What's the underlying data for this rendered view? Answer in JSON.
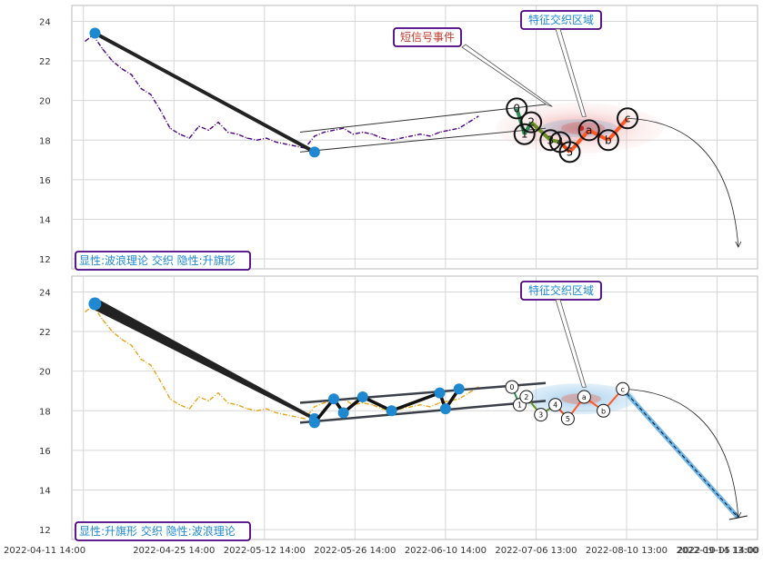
{
  "chart_data": [
    {
      "type": "line",
      "panel": "top",
      "yticks": [
        12,
        14,
        16,
        18,
        20,
        22,
        24
      ],
      "ylim": [
        11.5,
        24.8
      ],
      "grid": true,
      "annotations": {
        "callout_signal": "短信号事件",
        "callout_region": "特征交织区域",
        "legend_note": "显性:波浪理论 交织 隐性:升旗形"
      },
      "wave_labels": [
        "0",
        "1",
        "2",
        "3",
        "4",
        "5",
        "a",
        "b",
        "c"
      ],
      "price_series": [
        [
          0.2,
          23.0
        ],
        [
          1,
          23.3
        ],
        [
          2,
          22.6
        ],
        [
          3,
          22.0
        ],
        [
          4,
          21.6
        ],
        [
          5,
          21.3
        ],
        [
          6,
          20.6
        ],
        [
          7,
          20.3
        ],
        [
          8,
          19.5
        ],
        [
          9,
          18.6
        ],
        [
          10,
          18.3
        ],
        [
          11,
          18.1
        ],
        [
          12,
          18.7
        ],
        [
          13,
          18.5
        ],
        [
          14,
          18.9
        ],
        [
          15,
          18.4
        ],
        [
          16,
          18.3
        ],
        [
          17,
          18.1
        ],
        [
          18,
          18.0
        ],
        [
          19,
          18.1
        ],
        [
          20,
          17.9
        ],
        [
          21,
          17.8
        ],
        [
          22,
          17.7
        ],
        [
          23,
          17.6
        ],
        [
          24,
          18.2
        ],
        [
          25,
          18.4
        ],
        [
          26,
          18.5
        ],
        [
          27,
          18.6
        ],
        [
          28,
          18.3
        ],
        [
          29,
          18.4
        ],
        [
          30,
          18.3
        ],
        [
          31,
          18.1
        ],
        [
          32,
          18.0
        ],
        [
          33,
          18.1
        ],
        [
          34,
          18.2
        ],
        [
          35,
          18.3
        ],
        [
          36,
          18.2
        ],
        [
          37,
          18.4
        ],
        [
          38,
          18.5
        ],
        [
          39,
          18.6
        ],
        [
          40,
          18.9
        ],
        [
          41,
          19.2
        ]
      ],
      "pattern_line": [
        [
          1.2,
          23.4
        ],
        [
          24,
          17.4
        ]
      ],
      "channel_upper": [
        [
          22.5,
          18.4
        ],
        [
          48,
          19.8
        ]
      ],
      "channel_lower": [
        [
          22.5,
          17.4
        ],
        [
          48,
          18.6
        ]
      ],
      "wave_points": [
        [
          45,
          19.6
        ],
        [
          45.8,
          18.3
        ],
        [
          46.5,
          18.9
        ],
        [
          48.5,
          18.0
        ],
        [
          49.5,
          17.9
        ],
        [
          50.5,
          17.4
        ],
        [
          52.5,
          18.5
        ],
        [
          54.5,
          18.0
        ],
        [
          56.5,
          19.1
        ]
      ],
      "forecast_curve": [
        [
          56.5,
          19.1
        ],
        [
          68,
          12.6
        ]
      ]
    },
    {
      "type": "line",
      "panel": "bottom",
      "yticks": [
        12,
        14,
        16,
        18,
        20,
        22,
        24
      ],
      "ylim": [
        11.5,
        24.8
      ],
      "grid": true,
      "xticks": [
        "2022-04-11 14:00",
        "2022-04-25 14:00",
        "2022-05-12 14:00",
        "2022-05-26 14:00",
        "2022-06-10 14:00",
        "2022-07-06 13:00",
        "2022-08-10 13:00",
        "2022-09-14 13:00",
        "2022-10-05 14:00"
      ],
      "annotations": {
        "callout_region": "特征交织区域",
        "legend_note": "显性:升旗形 交织 隐性:波浪理论"
      },
      "wave_labels": [
        "0",
        "1",
        "2",
        "3",
        "4",
        "5",
        "a",
        "b",
        "c"
      ],
      "price_series": [
        [
          0.2,
          23.0
        ],
        [
          1,
          23.3
        ],
        [
          2,
          22.6
        ],
        [
          3,
          22.0
        ],
        [
          4,
          21.6
        ],
        [
          5,
          21.3
        ],
        [
          6,
          20.6
        ],
        [
          7,
          20.3
        ],
        [
          8,
          19.5
        ],
        [
          9,
          18.6
        ],
        [
          10,
          18.3
        ],
        [
          11,
          18.1
        ],
        [
          12,
          18.7
        ],
        [
          13,
          18.5
        ],
        [
          14,
          18.9
        ],
        [
          15,
          18.4
        ],
        [
          16,
          18.3
        ],
        [
          17,
          18.1
        ],
        [
          18,
          18.0
        ],
        [
          19,
          18.1
        ],
        [
          20,
          17.9
        ],
        [
          21,
          17.8
        ],
        [
          22,
          17.7
        ],
        [
          23,
          17.6
        ],
        [
          24,
          18.2
        ],
        [
          25,
          18.4
        ],
        [
          26,
          18.5
        ],
        [
          27,
          18.6
        ],
        [
          28,
          18.3
        ],
        [
          29,
          18.4
        ],
        [
          30,
          18.3
        ],
        [
          31,
          18.1
        ],
        [
          32,
          18.0
        ],
        [
          33,
          18.1
        ],
        [
          34,
          18.2
        ],
        [
          35,
          18.3
        ],
        [
          36,
          18.2
        ],
        [
          37,
          18.4
        ],
        [
          38,
          18.5
        ],
        [
          39,
          18.6
        ],
        [
          40,
          18.9
        ],
        [
          41,
          19.2
        ]
      ],
      "pattern_line": [
        [
          1.2,
          23.4
        ],
        [
          24,
          17.6
        ]
      ],
      "flag_points": [
        [
          24,
          17.4
        ],
        [
          26,
          18.6
        ],
        [
          27,
          17.9
        ],
        [
          29,
          18.7
        ],
        [
          32,
          18.0
        ],
        [
          37,
          18.9
        ],
        [
          37.6,
          18.1
        ],
        [
          39,
          19.1
        ]
      ],
      "channel_upper": [
        [
          22.5,
          18.4
        ],
        [
          48,
          19.4
        ]
      ],
      "channel_lower": [
        [
          22.5,
          17.4
        ],
        [
          48,
          18.5
        ]
      ],
      "wave_points": [
        [
          44.5,
          19.2
        ],
        [
          45.3,
          18.3
        ],
        [
          46,
          18.7
        ],
        [
          47.5,
          17.8
        ],
        [
          49,
          18.3
        ],
        [
          50.3,
          17.6
        ],
        [
          52,
          18.7
        ],
        [
          54,
          18.0
        ],
        [
          56,
          19.1
        ]
      ],
      "forecast_line": [
        [
          56,
          19.1
        ],
        [
          68,
          12.6
        ]
      ],
      "forecast_curve": [
        [
          56,
          19.1
        ],
        [
          68,
          12.6
        ]
      ]
    }
  ]
}
